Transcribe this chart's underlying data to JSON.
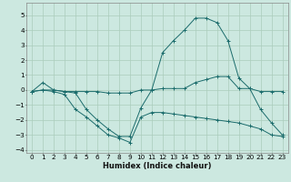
{
  "xlabel": "Humidex (Indice chaleur)",
  "bg_color": "#cce8e0",
  "grid_color": "#aaccbb",
  "line_color": "#1a6b6b",
  "xlim": [
    -0.5,
    23.5
  ],
  "ylim": [
    -4.2,
    5.8
  ],
  "line1_x": [
    0,
    1,
    2,
    3,
    4,
    5,
    6,
    7,
    8,
    9,
    10,
    11,
    12,
    13,
    14,
    15,
    16,
    17,
    18,
    19,
    20,
    21,
    22,
    23
  ],
  "line1_y": [
    -0.1,
    0.5,
    0.0,
    -0.1,
    -0.2,
    -1.3,
    -2.0,
    -2.6,
    -3.1,
    -3.1,
    -1.2,
    0.0,
    2.5,
    3.3,
    4.0,
    4.8,
    4.8,
    4.5,
    3.3,
    0.8,
    0.1,
    -1.3,
    -2.2,
    -3.0
  ],
  "line2_x": [
    0,
    1,
    2,
    3,
    4,
    5,
    6,
    7,
    8,
    9,
    10,
    11,
    12,
    13,
    14,
    15,
    16,
    17,
    18,
    19,
    20,
    21,
    22,
    23
  ],
  "line2_y": [
    -0.1,
    0.0,
    0.0,
    -0.1,
    -0.1,
    -0.1,
    -0.1,
    -0.2,
    -0.2,
    -0.2,
    0.0,
    0.0,
    0.1,
    0.1,
    0.1,
    0.5,
    0.7,
    0.9,
    0.9,
    0.1,
    0.1,
    -0.1,
    -0.1,
    -0.1
  ],
  "line3_x": [
    0,
    1,
    2,
    3,
    4,
    5,
    6,
    7,
    8,
    9,
    10,
    11,
    12,
    13,
    14,
    15,
    16,
    17,
    18,
    19,
    20,
    21,
    22,
    23
  ],
  "line3_y": [
    -0.1,
    0.0,
    -0.1,
    -0.3,
    -1.3,
    -1.8,
    -2.4,
    -3.0,
    -3.2,
    -3.5,
    -1.8,
    -1.5,
    -1.5,
    -1.6,
    -1.7,
    -1.8,
    -1.9,
    -2.0,
    -2.1,
    -2.2,
    -2.4,
    -2.6,
    -3.0,
    -3.1
  ],
  "yticks": [
    -4,
    -3,
    -2,
    -1,
    0,
    1,
    2,
    3,
    4,
    5
  ],
  "xticks": [
    0,
    1,
    2,
    3,
    4,
    5,
    6,
    7,
    8,
    9,
    10,
    11,
    12,
    13,
    14,
    15,
    16,
    17,
    18,
    19,
    20,
    21,
    22,
    23
  ],
  "xlabel_fontsize": 6.0,
  "tick_fontsize": 5.2
}
